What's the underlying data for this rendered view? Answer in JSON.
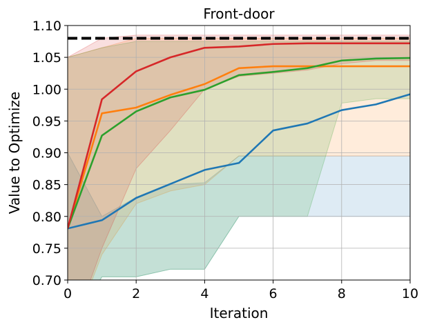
{
  "chart_data": {
    "type": "line",
    "title": "Front-door",
    "xlabel": "Iteration",
    "ylabel": "Value to Optimize",
    "xlim": [
      0,
      10
    ],
    "ylim": [
      0.7,
      1.1
    ],
    "xticks": [
      "0",
      "2",
      "4",
      "6",
      "8",
      "10"
    ],
    "yticks": [
      "0.70",
      "0.75",
      "0.80",
      "0.85",
      "0.90",
      "0.95",
      "1.00",
      "1.05",
      "1.10"
    ],
    "grid": true,
    "reference_line": {
      "y": 1.08,
      "style": "dashed",
      "color": "#000000"
    },
    "x": [
      0,
      1,
      2,
      3,
      4,
      5,
      6,
      7,
      8,
      9,
      10
    ],
    "series": [
      {
        "color": "#1f77b4",
        "values": [
          0.781,
          0.794,
          0.829,
          0.851,
          0.873,
          0.884,
          0.935,
          0.946,
          0.967,
          0.976,
          0.992
        ],
        "band_low": [
          0.62,
          0.705,
          0.705,
          0.717,
          0.717,
          0.8,
          0.8,
          0.8,
          0.8,
          0.8,
          0.8
        ],
        "band_high": [
          0.9,
          0.8,
          0.83,
          0.85,
          0.853,
          0.895,
          0.895,
          0.895,
          0.895,
          0.895,
          0.895
        ]
      },
      {
        "color": "#ff7f0e",
        "values": [
          0.781,
          0.962,
          0.971,
          0.991,
          1.008,
          1.033,
          1.036,
          1.036,
          1.036,
          1.036,
          1.036
        ],
        "band_low": [
          0.6,
          0.74,
          0.82,
          0.84,
          0.85,
          0.895,
          0.895,
          0.895,
          0.895,
          0.895,
          0.895
        ],
        "band_high": [
          1.05,
          1.065,
          1.08,
          1.08,
          1.08,
          1.08,
          1.08,
          1.08,
          1.08,
          1.08,
          1.08
        ]
      },
      {
        "color": "#2ca02c",
        "values": [
          0.781,
          0.927,
          0.965,
          0.987,
          0.999,
          1.022,
          1.027,
          1.033,
          1.045,
          1.048,
          1.049
        ],
        "band_low": [
          0.6,
          0.705,
          0.705,
          0.717,
          0.717,
          0.8,
          0.8,
          0.8,
          0.978,
          0.985,
          0.985
        ],
        "band_high": [
          1.05,
          1.065,
          1.075,
          1.075,
          1.075,
          1.075,
          1.075,
          1.075,
          1.075,
          1.075,
          1.075
        ]
      },
      {
        "color": "#d62728",
        "values": [
          0.781,
          0.984,
          1.028,
          1.05,
          1.065,
          1.067,
          1.071,
          1.072,
          1.072,
          1.072,
          1.072
        ],
        "band_low": [
          0.6,
          0.75,
          0.875,
          0.935,
          1.0,
          1.02,
          1.025,
          1.03,
          1.04,
          1.045,
          1.045
        ],
        "band_high": [
          1.05,
          1.08,
          1.085,
          1.085,
          1.085,
          1.085,
          1.085,
          1.085,
          1.085,
          1.085,
          1.085
        ]
      }
    ]
  }
}
